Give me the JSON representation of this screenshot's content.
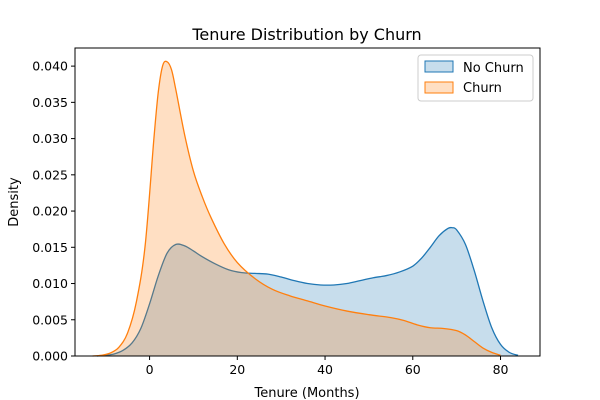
{
  "chart_data": {
    "type": "area",
    "title": "Tenure Distribution by Churn",
    "xlabel": "Tenure (Months)",
    "ylabel": "Density",
    "xlim": [
      -17,
      89
    ],
    "ylim": [
      0,
      0.0425
    ],
    "xticks": [
      0,
      20,
      40,
      60,
      80
    ],
    "xtick_labels": [
      "0",
      "20",
      "40",
      "60",
      "80"
    ],
    "yticks": [
      0,
      0.005,
      0.01,
      0.015,
      0.02,
      0.025,
      0.03,
      0.035,
      0.04
    ],
    "ytick_labels": [
      "0.000",
      "0.005",
      "0.010",
      "0.015",
      "0.020",
      "0.025",
      "0.030",
      "0.035",
      "0.040"
    ],
    "grid": false,
    "legend_position": "top-right",
    "series": [
      {
        "name": "No Churn",
        "color": "#1f77b4",
        "x": [
          -12,
          -10,
          -8,
          -6,
          -4,
          -2,
          0,
          2,
          4,
          6,
          8,
          10,
          12,
          15,
          18,
          21,
          24,
          27,
          30,
          33,
          36,
          39,
          42,
          45,
          48,
          51,
          54,
          57,
          60,
          62,
          64,
          66,
          68,
          69,
          70,
          72,
          74,
          76,
          78,
          80,
          82,
          84
        ],
        "y": [
          0.0,
          0.0001,
          0.0003,
          0.0008,
          0.0018,
          0.0038,
          0.0072,
          0.0111,
          0.0142,
          0.0154,
          0.0152,
          0.0145,
          0.0137,
          0.0127,
          0.0119,
          0.0115,
          0.0114,
          0.0113,
          0.0109,
          0.0104,
          0.01,
          0.0098,
          0.0098,
          0.01,
          0.0104,
          0.0108,
          0.0111,
          0.0116,
          0.0124,
          0.0135,
          0.015,
          0.0166,
          0.0176,
          0.0177,
          0.0174,
          0.0154,
          0.0118,
          0.0076,
          0.0039,
          0.0016,
          0.0005,
          0.0001
        ]
      },
      {
        "name": "Churn",
        "color": "#ff7f0e",
        "x": [
          -13,
          -11,
          -9,
          -7,
          -5,
          -3,
          -1,
          1,
          2,
          3,
          4,
          5,
          6,
          8,
          10,
          12,
          14,
          17,
          20,
          24,
          28,
          32,
          36,
          40,
          45,
          50,
          55,
          58,
          61,
          64,
          67,
          70,
          72,
          74,
          76,
          78,
          80
        ],
        "y": [
          0.0,
          0.0001,
          0.0004,
          0.0012,
          0.0032,
          0.0075,
          0.0153,
          0.0301,
          0.0365,
          0.0401,
          0.0406,
          0.0395,
          0.0367,
          0.0305,
          0.0255,
          0.022,
          0.0191,
          0.0155,
          0.0129,
          0.0107,
          0.0092,
          0.0083,
          0.0076,
          0.0069,
          0.0062,
          0.0057,
          0.0053,
          0.0049,
          0.0043,
          0.0039,
          0.0038,
          0.0035,
          0.0029,
          0.002,
          0.0011,
          0.0005,
          0.0001
        ]
      }
    ]
  }
}
